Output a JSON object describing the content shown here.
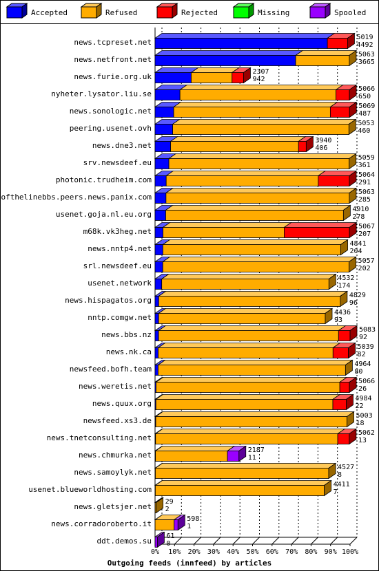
{
  "chart_data": {
    "type": "bar",
    "title": "Outgoing feeds (innfeed) by articles",
    "legend": [
      {
        "name": "Accepted",
        "color": "#0000ff"
      },
      {
        "name": "Refused",
        "color": "#ffac00"
      },
      {
        "name": "Rejected",
        "color": "#ff0000"
      },
      {
        "name": "Missing",
        "color": "#00ff00"
      },
      {
        "name": "Spooled",
        "color": "#9900ff"
      }
    ],
    "legend_position": "top",
    "x_ticks": [
      "0%",
      "10%",
      "20%",
      "30%",
      "40%",
      "50%",
      "60%",
      "70%",
      "80%",
      "90%",
      "100%"
    ],
    "xlim": [
      0,
      5083
    ],
    "grid": true,
    "rows": [
      {
        "site": "news.tcpreset.net",
        "total": 5019,
        "accepted": 4492,
        "refused": 0,
        "rejected": 527,
        "missing": 0,
        "spooled": 0
      },
      {
        "site": "news.netfront.net",
        "total": 5063,
        "accepted": 3665,
        "refused": 1398,
        "rejected": 0,
        "missing": 0,
        "spooled": 0
      },
      {
        "site": "news.furie.org.uk",
        "total": 2307,
        "accepted": 942,
        "refused": 1065,
        "rejected": 300,
        "missing": 0,
        "spooled": 0
      },
      {
        "site": "nyheter.lysator.liu.se",
        "total": 5066,
        "accepted": 650,
        "refused": 4066,
        "rejected": 350,
        "missing": 0,
        "spooled": 0
      },
      {
        "site": "news.sonologic.net",
        "total": 5069,
        "accepted": 487,
        "refused": 4082,
        "rejected": 500,
        "missing": 0,
        "spooled": 0
      },
      {
        "site": "peering.usenet.ovh",
        "total": 5053,
        "accepted": 460,
        "refused": 4593,
        "rejected": 0,
        "missing": 0,
        "spooled": 0
      },
      {
        "site": "news.dne3.net",
        "total": 3940,
        "accepted": 406,
        "refused": 3334,
        "rejected": 200,
        "missing": 0,
        "spooled": 0
      },
      {
        "site": "srv.newsdeef.eu",
        "total": 5059,
        "accepted": 361,
        "refused": 4698,
        "rejected": 0,
        "missing": 0,
        "spooled": 0
      },
      {
        "site": "photonic.trudheim.com",
        "total": 5064,
        "accepted": 291,
        "refused": 3963,
        "rejected": 810,
        "missing": 0,
        "spooled": 0
      },
      {
        "site": "endofthelinebbs.peers.news.panix.com",
        "total": 5063,
        "accepted": 285,
        "refused": 4778,
        "rejected": 0,
        "missing": 0,
        "spooled": 0
      },
      {
        "site": "usenet.goja.nl.eu.org",
        "total": 4910,
        "accepted": 278,
        "refused": 4632,
        "rejected": 0,
        "missing": 0,
        "spooled": 0
      },
      {
        "site": "m68k.vk3heg.net",
        "total": 5067,
        "accepted": 207,
        "refused": 3160,
        "rejected": 1700,
        "missing": 0,
        "spooled": 0
      },
      {
        "site": "news.nntp4.net",
        "total": 4841,
        "accepted": 204,
        "refused": 4637,
        "rejected": 0,
        "missing": 0,
        "spooled": 0
      },
      {
        "site": "srl.newsdeef.eu",
        "total": 5057,
        "accepted": 202,
        "refused": 4855,
        "rejected": 0,
        "missing": 0,
        "spooled": 0
      },
      {
        "site": "usenet.network",
        "total": 4532,
        "accepted": 174,
        "refused": 4358,
        "rejected": 0,
        "missing": 0,
        "spooled": 0
      },
      {
        "site": "news.hispagatos.org",
        "total": 4829,
        "accepted": 96,
        "refused": 4733,
        "rejected": 0,
        "missing": 0,
        "spooled": 0
      },
      {
        "site": "nntp.comgw.net",
        "total": 4436,
        "accepted": 93,
        "refused": 4343,
        "rejected": 0,
        "missing": 0,
        "spooled": 0
      },
      {
        "site": "news.bbs.nz",
        "total": 5083,
        "accepted": 92,
        "refused": 4691,
        "rejected": 300,
        "missing": 0,
        "spooled": 0
      },
      {
        "site": "news.nk.ca",
        "total": 5039,
        "accepted": 82,
        "refused": 4557,
        "rejected": 400,
        "missing": 0,
        "spooled": 0
      },
      {
        "site": "newsfeed.bofh.team",
        "total": 4964,
        "accepted": 80,
        "refused": 4884,
        "rejected": 0,
        "missing": 0,
        "spooled": 0
      },
      {
        "site": "news.weretis.net",
        "total": 5066,
        "accepted": 26,
        "refused": 4790,
        "rejected": 250,
        "missing": 0,
        "spooled": 0
      },
      {
        "site": "news.quux.org",
        "total": 4984,
        "accepted": 22,
        "refused": 4612,
        "rejected": 350,
        "missing": 0,
        "spooled": 0
      },
      {
        "site": "newsfeed.xs3.de",
        "total": 5003,
        "accepted": 18,
        "refused": 4985,
        "rejected": 0,
        "missing": 0,
        "spooled": 0
      },
      {
        "site": "news.tnetconsulting.net",
        "total": 5062,
        "accepted": 13,
        "refused": 4749,
        "rejected": 300,
        "missing": 0,
        "spooled": 0
      },
      {
        "site": "news.chmurka.net",
        "total": 2187,
        "accepted": 11,
        "refused": 1876,
        "rejected": 0,
        "missing": 0,
        "spooled": 300
      },
      {
        "site": "news.samoylyk.net",
        "total": 4527,
        "accepted": 8,
        "refused": 4519,
        "rejected": 0,
        "missing": 0,
        "spooled": 0
      },
      {
        "site": "usenet.blueworldhosting.com",
        "total": 4411,
        "accepted": 7,
        "refused": 4404,
        "rejected": 0,
        "missing": 0,
        "spooled": 0
      },
      {
        "site": "news.gletsjer.net",
        "total": 29,
        "accepted": 2,
        "refused": 27,
        "rejected": 0,
        "missing": 0,
        "spooled": 0
      },
      {
        "site": "news.corradoroberto.it",
        "total": 598,
        "accepted": 1,
        "refused": 497,
        "rejected": 0,
        "missing": 0,
        "spooled": 100
      },
      {
        "site": "ddt.demos.su",
        "total": 61,
        "accepted": 0,
        "refused": 0,
        "rejected": 0,
        "missing": 0,
        "spooled": 61
      }
    ]
  }
}
